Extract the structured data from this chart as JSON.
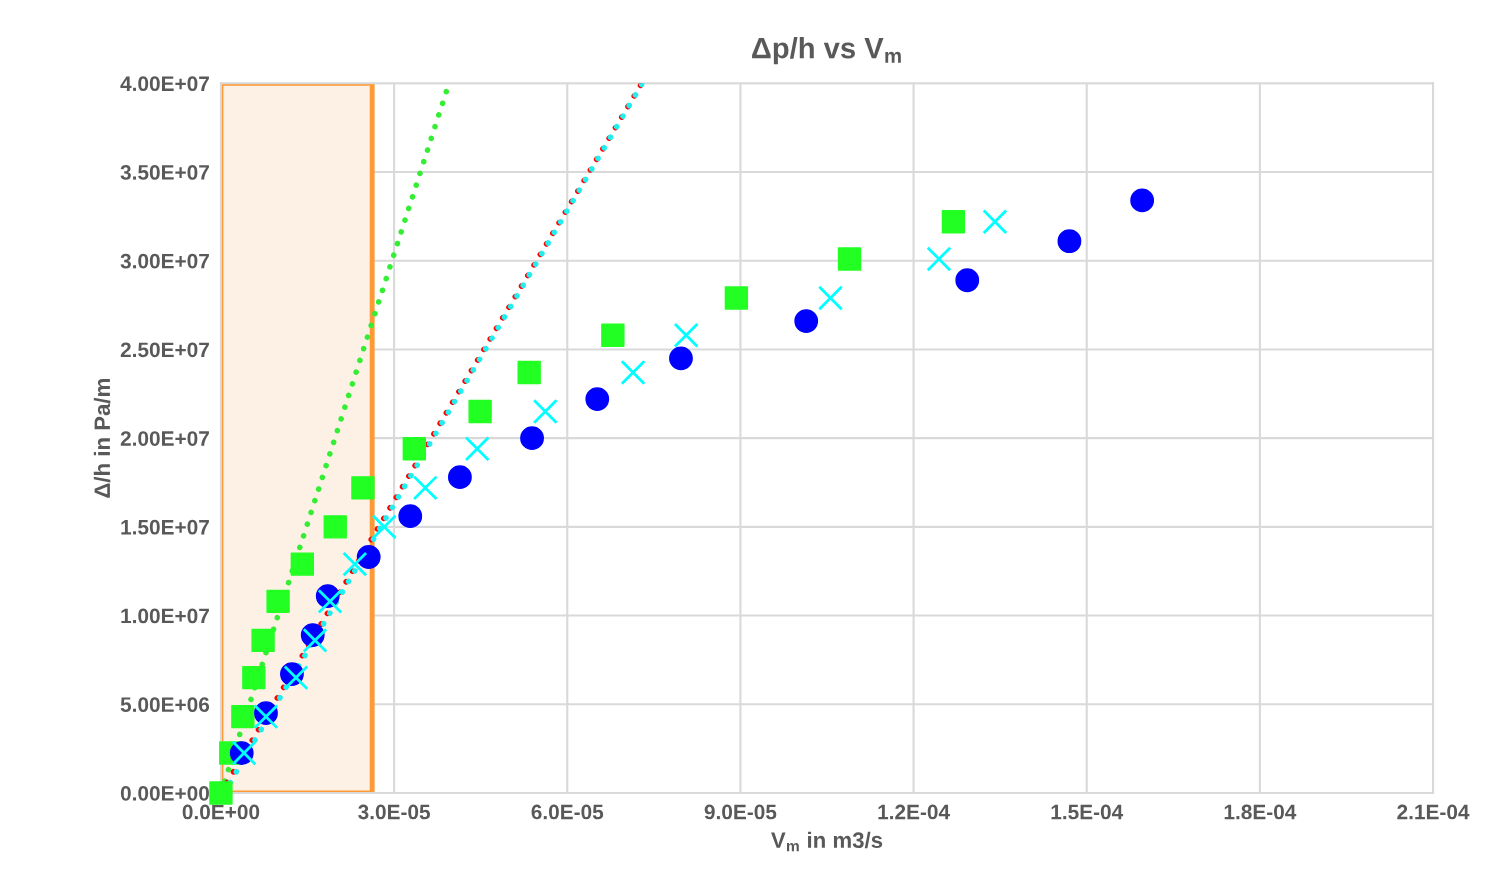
{
  "chart_data": {
    "type": "scatter",
    "title": "Δp/h vs V$_{m}$",
    "xlabel": "V$_{m}$ in m3/s",
    "ylabel": "Δ/h in Pa/m",
    "xlim": [
      0,
      0.00021
    ],
    "ylim": [
      0,
      40000000
    ],
    "xticks": [
      {
        "value": 0,
        "label": "0.0E+00"
      },
      {
        "value": 3e-05,
        "label": "3.0E-05"
      },
      {
        "value": 6e-05,
        "label": "6.0E-05"
      },
      {
        "value": 9e-05,
        "label": "9.0E-05"
      },
      {
        "value": 0.00012,
        "label": "1.2E-04"
      },
      {
        "value": 0.00015,
        "label": "1.5E-04"
      },
      {
        "value": 0.00018,
        "label": "1.8E-04"
      },
      {
        "value": 0.00021,
        "label": "2.1E-04"
      }
    ],
    "yticks": [
      {
        "value": 0,
        "label": "0.00E+00"
      },
      {
        "value": 5000000,
        "label": "5.00E+06"
      },
      {
        "value": 10000000,
        "label": "1.00E+07"
      },
      {
        "value": 15000000,
        "label": "1.50E+07"
      },
      {
        "value": 20000000,
        "label": "2.00E+07"
      },
      {
        "value": 25000000,
        "label": "2.50E+07"
      },
      {
        "value": 30000000,
        "label": "3.00E+07"
      },
      {
        "value": 35000000,
        "label": "3.50E+07"
      },
      {
        "value": 40000000,
        "label": "4.00E+07"
      }
    ],
    "grid": true,
    "bands": [
      {
        "axis": "x",
        "from": 0,
        "to": 2.62e-05,
        "color": "#ff9933"
      }
    ],
    "series": [
      {
        "type": "line",
        "color": "#33ee33",
        "line_style": "dotted",
        "marker": "none",
        "x": [
          0,
          3.95e-05
        ],
        "values": [
          0,
          40000000
        ]
      },
      {
        "type": "line",
        "color": "#ff0000",
        "line_style": "dotted",
        "marker": "none",
        "x": [
          0,
          7.29e-05
        ],
        "values": [
          0,
          40000000
        ]
      },
      {
        "type": "line",
        "color": "#22eeee",
        "line_style": "dotted",
        "marker": "none",
        "x": [
          5e-07,
          7.3e-05
        ],
        "values": [
          0,
          40000000
        ]
      },
      {
        "color": "#0000ff",
        "marker": "circle",
        "x": [
          3.6e-06,
          7.8e-06,
          1.23e-05,
          1.59e-05,
          1.85e-05,
          2.56e-05,
          3.28e-05,
          4.14e-05,
          5.39e-05,
          6.52e-05,
          7.97e-05,
          0.0001014,
          0.0001293,
          0.000147,
          0.0001596
        ],
        "values": [
          2250000,
          4500000,
          6700000,
          8900000,
          11100000,
          13300000,
          15600000,
          17800000,
          20000000,
          22200000,
          24500000,
          26600000,
          28900000,
          31100000,
          33400000
        ]
      },
      {
        "color": "#00ffff",
        "marker": "cross",
        "x": [
          4e-06,
          7.8e-06,
          1.3e-05,
          1.63e-05,
          1.89e-05,
          2.32e-05,
          2.83e-05,
          3.54e-05,
          4.44e-05,
          5.62e-05,
          7.14e-05,
          8.06e-05,
          0.0001056,
          0.0001244,
          0.0001341
        ],
        "values": [
          2250000,
          4300000,
          6500000,
          8600000,
          10800000,
          12900000,
          15000000,
          17200000,
          19400000,
          21500000,
          23700000,
          25800000,
          27900000,
          30100000,
          32200000
        ]
      },
      {
        "color": "#22ff22",
        "marker": "square",
        "x": [
          0,
          1.7e-06,
          3.8e-06,
          5.7e-06,
          7.3e-06,
          9.9e-06,
          1.41e-05,
          1.98e-05,
          2.46e-05,
          3.35e-05,
          4.49e-05,
          5.34e-05,
          6.79e-05,
          8.93e-05,
          0.0001089,
          0.0001269
        ],
        "values": [
          0,
          2250000,
          4300000,
          6500000,
          8600000,
          10800000,
          12900000,
          15000000,
          17200000,
          19400000,
          21500000,
          23700000,
          25800000,
          27900000,
          30100000,
          32200000
        ]
      }
    ]
  }
}
